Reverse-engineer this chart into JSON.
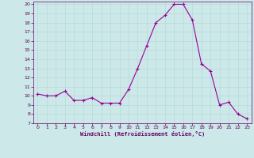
{
  "x": [
    0,
    1,
    2,
    3,
    4,
    5,
    6,
    7,
    8,
    9,
    10,
    11,
    12,
    13,
    14,
    15,
    16,
    17,
    18,
    19,
    20,
    21,
    22,
    23
  ],
  "y": [
    10.2,
    10.0,
    10.0,
    10.5,
    9.5,
    9.5,
    9.8,
    9.2,
    9.2,
    9.2,
    10.7,
    13.0,
    15.5,
    18.0,
    18.8,
    20.0,
    20.0,
    18.3,
    13.5,
    12.7,
    9.0,
    9.3,
    8.0,
    7.5
  ],
  "xlabel": "Windchill (Refroidissement éolien,°C)",
  "ylim": [
    7,
    20
  ],
  "xlim": [
    -0.5,
    23.5
  ],
  "yticks": [
    7,
    8,
    9,
    10,
    11,
    12,
    13,
    14,
    15,
    16,
    17,
    18,
    19,
    20
  ],
  "xticks": [
    0,
    1,
    2,
    3,
    4,
    5,
    6,
    7,
    8,
    9,
    10,
    11,
    12,
    13,
    14,
    15,
    16,
    17,
    18,
    19,
    20,
    21,
    22,
    23
  ],
  "line_color": "#990099",
  "marker_color": "#990099",
  "bg_color": "#cce8e8",
  "grid_color": "#bbdddd",
  "label_color": "#660066",
  "tick_color": "#660066"
}
